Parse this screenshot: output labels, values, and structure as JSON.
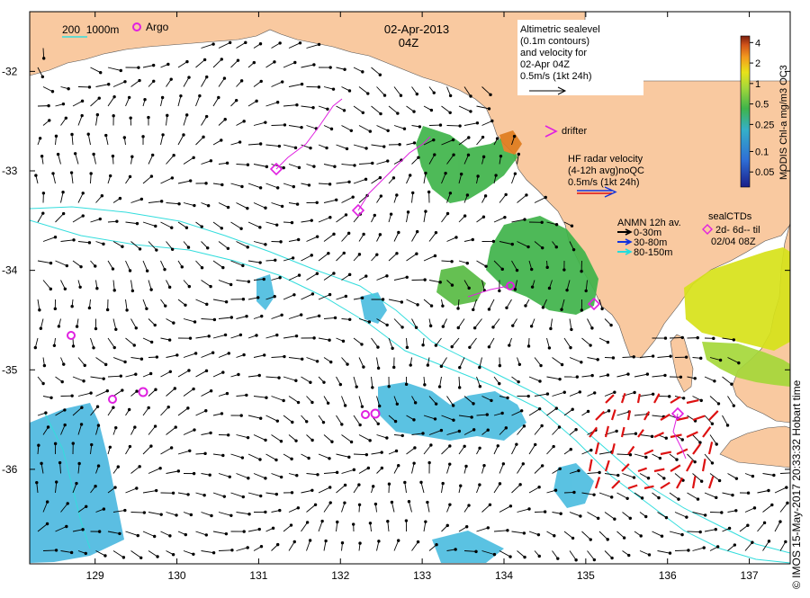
{
  "map": {
    "title_date": "02-Apr-2013",
    "title_time": "04Z",
    "x_ticks": [
      "129",
      "130",
      "131",
      "132",
      "133",
      "134",
      "135",
      "136",
      "137"
    ],
    "y_ticks": [
      "-32",
      "-33",
      "-34",
      "-35",
      "-36"
    ],
    "x_range": [
      128.2,
      137.5
    ],
    "y_range": [
      -36.95,
      -31.4
    ],
    "colors": {
      "land": "#f9c9a0",
      "contour": "#33dddd",
      "argo": "#e020e0",
      "hf_radar": "#dd1111",
      "chl_low": "#35a9dd",
      "chl_mid": "#3fb44a",
      "chl_high": "#d7e21a"
    }
  },
  "legend": {
    "isobaths": "200  1000m",
    "argo": "Argo",
    "altimetry_lines": [
      "Altimetric sealevel",
      "(0.1m contours)",
      "and velocity for",
      "02-Apr 04Z",
      "0.5m/s (1kt 24h)"
    ],
    "drifter": "drifter",
    "hf_lines": [
      "HF radar velocity",
      "(4-12h avg)noQC",
      "0.5m/s (1kt 24h)"
    ],
    "anmn_title": "ANMN 12h av.",
    "anmn_items": [
      {
        "label": "0-30m",
        "color": "#000000"
      },
      {
        "label": "30-80m",
        "color": "#1133dd"
      },
      {
        "label": "80-150m",
        "color": "#22dddd"
      }
    ],
    "sealctd_lines": [
      "sealCTDs",
      "2d- 6d-- til",
      "02/04 08Z"
    ]
  },
  "colorbar": {
    "label": "MODIS Chl-a mg/m3 OC3",
    "ticks": [
      "4",
      "2",
      "1",
      "0.5",
      "0.25",
      "0.1",
      "0.05"
    ]
  },
  "credit": "© IMOS 15-May-2017 20:33:32 Hobart time"
}
